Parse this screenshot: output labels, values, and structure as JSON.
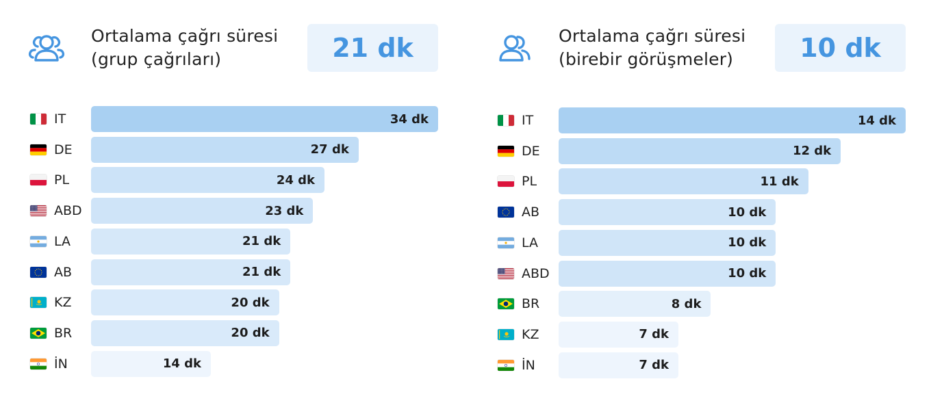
{
  "colors": {
    "accent": "#4595e0",
    "summary_box": "#eaf3fc",
    "bar_max": "#a9d0f2",
    "bar_min": "#eef5fd"
  },
  "panels": [
    {
      "icon": "users-icon",
      "title_line1": "Ortalama çağrı süresi",
      "title_line2": "(grup çağrıları)",
      "summary": "21 dk"
    },
    {
      "icon": "users-icon",
      "title_line1": "Ortalama çağrı süresi",
      "title_line2": "(birebir görüşmeler)",
      "summary": "10 dk"
    }
  ],
  "chart_data": [
    {
      "type": "bar",
      "orientation": "horizontal",
      "unit": "dk",
      "categories": [
        "IT",
        "DE",
        "PL",
        "ABD",
        "LA",
        "AB",
        "KZ",
        "BR",
        "İN"
      ],
      "flags": [
        "it",
        "de",
        "pl",
        "us",
        "ar",
        "eu",
        "kz",
        "br",
        "in"
      ],
      "values": [
        34,
        27,
        24,
        23,
        21,
        21,
        20,
        20,
        14
      ],
      "labels": [
        "34 dk",
        "27 dk",
        "24 dk",
        "23 dk",
        "21 dk",
        "21 dk",
        "20 dk",
        "20 dk",
        "14 dk"
      ],
      "xlim": [
        0,
        34
      ]
    },
    {
      "type": "bar",
      "orientation": "horizontal",
      "unit": "dk",
      "categories": [
        "IT",
        "DE",
        "PL",
        "AB",
        "LA",
        "ABD",
        "BR",
        "KZ",
        "İN"
      ],
      "flags": [
        "it",
        "de",
        "pl",
        "eu",
        "ar",
        "us",
        "br",
        "kz",
        "in"
      ],
      "values": [
        14,
        12,
        11,
        10,
        10,
        10,
        8,
        7,
        7
      ],
      "labels": [
        "14 dk",
        "12 dk",
        "11 dk",
        "10 dk",
        "10 dk",
        "10 dk",
        "8 dk",
        "7 dk",
        "7 dk"
      ],
      "xlim": [
        0,
        14
      ]
    }
  ]
}
